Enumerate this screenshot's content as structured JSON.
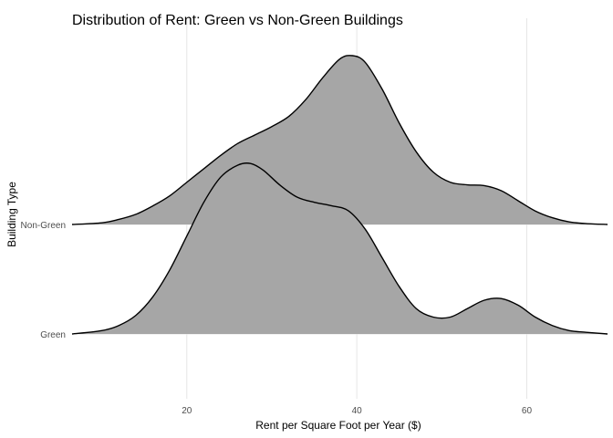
{
  "chart_data": {
    "type": "ridgeline",
    "title": "Distribution of Rent: Green vs Non-Green Buildings",
    "xlabel": "Rent per Square Foot per Year ($)",
    "ylabel": "Building Type",
    "xlim": [
      6.5,
      69.5
    ],
    "x_ticks": [
      20,
      40,
      60
    ],
    "grid": true,
    "fill_color": "#a6a6a6",
    "line_color": "#000000",
    "series": [
      {
        "name": "Green",
        "x": [
          6.5,
          10,
          12,
          14,
          16,
          18,
          20,
          22,
          24,
          26,
          27.5,
          29,
          31,
          33,
          35,
          37,
          39,
          41,
          43,
          45,
          47,
          49,
          51,
          53,
          55,
          57,
          59,
          61,
          63,
          65,
          67,
          69.5
        ],
        "density": [
          0.0,
          0.02,
          0.05,
          0.11,
          0.22,
          0.38,
          0.58,
          0.78,
          0.93,
          1.0,
          1.01,
          0.97,
          0.88,
          0.81,
          0.78,
          0.76,
          0.73,
          0.62,
          0.45,
          0.28,
          0.15,
          0.1,
          0.1,
          0.15,
          0.2,
          0.21,
          0.17,
          0.1,
          0.05,
          0.02,
          0.01,
          0.0
        ]
      },
      {
        "name": "Non-Green",
        "x": [
          6.5,
          10,
          12,
          14,
          16,
          18,
          20,
          22,
          24,
          26,
          28,
          30,
          32,
          34,
          36,
          38,
          39.5,
          41,
          43,
          45,
          47,
          49,
          51,
          53,
          55,
          57,
          59,
          61,
          63,
          65,
          67,
          69.5
        ],
        "density": [
          0.0,
          0.01,
          0.03,
          0.06,
          0.11,
          0.17,
          0.25,
          0.33,
          0.41,
          0.48,
          0.53,
          0.58,
          0.64,
          0.74,
          0.87,
          0.98,
          1.0,
          0.96,
          0.8,
          0.6,
          0.43,
          0.31,
          0.25,
          0.235,
          0.23,
          0.2,
          0.14,
          0.08,
          0.04,
          0.015,
          0.005,
          0.0
        ]
      }
    ]
  }
}
